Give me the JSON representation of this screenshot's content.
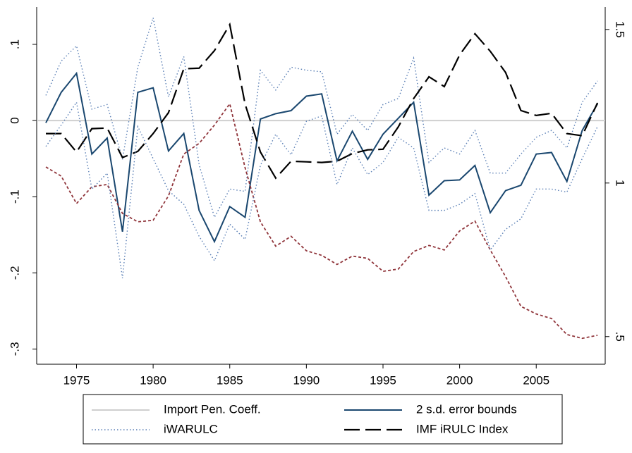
{
  "chart_data": {
    "type": "line",
    "x": [
      1973,
      1974,
      1975,
      1976,
      1977,
      1978,
      1979,
      1980,
      1981,
      1982,
      1983,
      1984,
      1985,
      1986,
      1987,
      1988,
      1989,
      1990,
      1991,
      1992,
      1993,
      1994,
      1995,
      1996,
      1997,
      1998,
      1999,
      2000,
      2001,
      2002,
      2003,
      2004,
      2005,
      2006,
      2007,
      2008,
      2009
    ],
    "xlim": [
      1972.4,
      2009.5
    ],
    "xticks": [
      1975,
      1980,
      1985,
      1990,
      1995,
      2000,
      2005
    ],
    "ylim": [
      -0.32,
      0.149
    ],
    "yticks": [
      {
        "value": -0.3,
        "label": "-.3"
      },
      {
        "value": -0.2,
        "label": "-.2"
      },
      {
        "value": -0.1,
        "label": "-.1"
      },
      0,
      {
        "value": 0.1,
        "label": ".1"
      }
    ],
    "y2lim": [
      0.41,
      1.573
    ],
    "y2ticks": [
      {
        "value": 0.5,
        "label": ".5"
      },
      1,
      1.5
    ],
    "series": [
      {
        "name": "Import Pen. Coeff.",
        "color": "#cfcfcf",
        "dash": "solid",
        "x": [
          1972.4,
          2009.5
        ],
        "values": [
          0,
          0
        ]
      },
      {
        "name": "2 s.d. error bounds",
        "color": "#1a476f",
        "dash": "solid",
        "values": [
          -0.003,
          0.037,
          0.062,
          -0.044,
          -0.023,
          -0.146,
          0.037,
          0.043,
          -0.04,
          -0.017,
          -0.118,
          -0.159,
          -0.113,
          -0.127,
          0.002,
          0.009,
          0.013,
          0.032,
          0.035,
          -0.053,
          -0.014,
          -0.051,
          -0.018,
          0.003,
          0.024,
          -0.098,
          -0.079,
          -0.078,
          -0.059,
          -0.121,
          -0.092,
          -0.085,
          -0.044,
          -0.042,
          -0.08,
          -0.013,
          0.022
        ]
      },
      {
        "name": "iWARULC",
        "color": "#5a7fb5",
        "dash": "dotted",
        "values": [
          0.033,
          0.078,
          0.098,
          0.015,
          0.021,
          -0.051,
          0.07,
          0.135,
          0.031,
          0.084,
          -0.058,
          -0.127,
          -0.09,
          -0.093,
          0.066,
          0.04,
          0.07,
          0.066,
          0.064,
          -0.018,
          0.008,
          -0.013,
          0.021,
          0.029,
          0.082,
          -0.055,
          -0.036,
          -0.044,
          -0.013,
          -0.069,
          -0.069,
          -0.044,
          -0.022,
          -0.013,
          -0.036,
          0.024,
          0.052
        ]
      },
      {
        "name": "IMF iRULC Index",
        "color": "#000000",
        "dash": "longdash",
        "axis": "y2",
        "values": [
          1.161,
          1.161,
          1.101,
          1.177,
          1.179,
          1.083,
          1.103,
          1.161,
          1.229,
          1.372,
          1.374,
          1.431,
          1.516,
          1.257,
          1.101,
          1.016,
          1.071,
          1.069,
          1.067,
          1.071,
          1.096,
          1.108,
          1.11,
          1.183,
          1.275,
          1.346,
          1.314,
          1.417,
          1.486,
          1.429,
          1.36,
          1.236,
          1.22,
          1.227,
          1.161,
          1.154,
          1.261
        ]
      },
      {
        "color": "#90353b",
        "dash": "shortdash",
        "values": [
          -0.061,
          -0.073,
          -0.109,
          -0.087,
          -0.084,
          -0.122,
          -0.133,
          -0.131,
          -0.099,
          -0.044,
          -0.03,
          -0.006,
          0.022,
          -0.062,
          -0.133,
          -0.165,
          -0.152,
          -0.171,
          -0.177,
          -0.189,
          -0.178,
          -0.181,
          -0.198,
          -0.195,
          -0.172,
          -0.164,
          -0.17,
          -0.145,
          -0.132,
          -0.17,
          -0.205,
          -0.244,
          -0.254,
          -0.26,
          -0.281,
          -0.286,
          -0.282
        ]
      },
      {
        "color": "#5a7fb5",
        "dash": "dotted",
        "values": [
          -0.034,
          -0.006,
          0.024,
          -0.09,
          -0.069,
          -0.207,
          -0.008,
          -0.05,
          -0.092,
          -0.11,
          -0.152,
          -0.184,
          -0.136,
          -0.156,
          -0.059,
          -0.018,
          -0.045,
          -0.001,
          0.006,
          -0.084,
          -0.036,
          -0.071,
          -0.055,
          -0.022,
          -0.036,
          -0.118,
          -0.118,
          -0.11,
          -0.096,
          -0.17,
          -0.143,
          -0.129,
          -0.09,
          -0.09,
          -0.094,
          -0.05,
          -0.008
        ]
      }
    ]
  }
}
